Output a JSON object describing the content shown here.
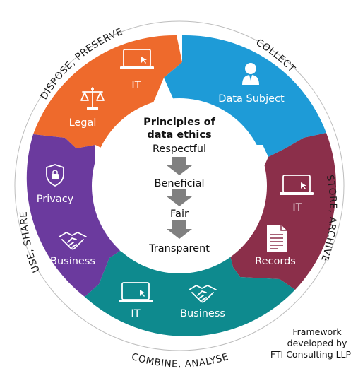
{
  "center": {
    "title_line1": "Principles of",
    "title_line2": "data ethics",
    "principles": [
      "Respectful",
      "Beneficial",
      "Fair",
      "Transparent"
    ]
  },
  "stages": {
    "collect": "COLLECT",
    "store": "STORE, ARCHIVE",
    "combine": "COMBINE, ANALYSE",
    "use": "USE, SHARE",
    "dispose": "DISPOSE, PRESERVE"
  },
  "segments": {
    "top_left": {
      "color": "#EE6A2C",
      "labels": {
        "it": "IT",
        "legal": "Legal"
      }
    },
    "top_right": {
      "color": "#1E9BD7",
      "labels": {
        "data_subject": "Data Subject"
      }
    },
    "right": {
      "color": "#8B2F4A",
      "labels": {
        "it": "IT",
        "records": "Records"
      }
    },
    "bottom": {
      "color": "#0E8A8E",
      "labels": {
        "it": "IT",
        "business": "Business"
      }
    },
    "left": {
      "color": "#6B3A9E",
      "labels": {
        "privacy": "Privacy",
        "business": "Business"
      }
    }
  },
  "credit": {
    "line1": "Framework",
    "line2": "developed by",
    "line3": "FTI Consulting LLP"
  }
}
